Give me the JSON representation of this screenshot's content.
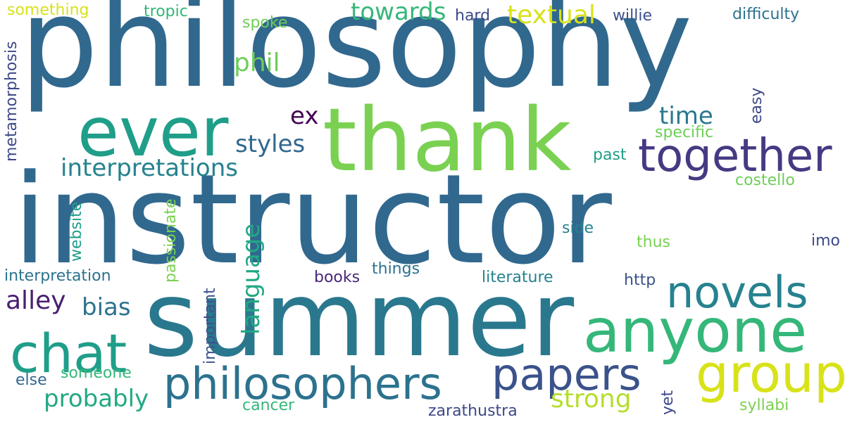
{
  "word_cloud": {
    "background": "#ffffff",
    "words": [
      {
        "text": "philosophy",
        "color": "#31688e"
      },
      {
        "text": "instructor",
        "color": "#31688e"
      },
      {
        "text": "summer",
        "color": "#2a788e"
      },
      {
        "text": "thank",
        "color": "#7ad151"
      },
      {
        "text": "ever",
        "color": "#1f9e89"
      },
      {
        "text": "together",
        "color": "#443a83"
      },
      {
        "text": "anyone",
        "color": "#35b779"
      },
      {
        "text": "group",
        "color": "#d8e219"
      },
      {
        "text": "chat",
        "color": "#1f9e89"
      },
      {
        "text": "novels",
        "color": "#26828e"
      },
      {
        "text": "philosophers",
        "color": "#2c728e"
      },
      {
        "text": "papers",
        "color": "#3b528b"
      },
      {
        "text": "interpretations",
        "color": "#26828e"
      },
      {
        "text": "styles",
        "color": "#31688e"
      },
      {
        "text": "towards",
        "color": "#35b779"
      },
      {
        "text": "textual",
        "color": "#d8e219"
      },
      {
        "text": "time",
        "color": "#2a788e"
      },
      {
        "text": "ex",
        "color": "#440154"
      },
      {
        "text": "phil",
        "color": "#6ece58"
      },
      {
        "text": "language",
        "color": "#22a884"
      },
      {
        "text": "alley",
        "color": "#481f70"
      },
      {
        "text": "bias",
        "color": "#2c728e"
      },
      {
        "text": "probably",
        "color": "#22a884"
      },
      {
        "text": "strong",
        "color": "#b5de2b"
      },
      {
        "text": "something",
        "color": "#d8e219"
      },
      {
        "text": "tropic",
        "color": "#35b779"
      },
      {
        "text": "spoke",
        "color": "#6ece58"
      },
      {
        "text": "hard",
        "color": "#3e4989"
      },
      {
        "text": "willie",
        "color": "#3b528b"
      },
      {
        "text": "difficulty",
        "color": "#2c728e"
      },
      {
        "text": "metamorphosis",
        "color": "#3e4989"
      },
      {
        "text": "easy",
        "color": "#3e4989"
      },
      {
        "text": "specific",
        "color": "#6ece58"
      },
      {
        "text": "past",
        "color": "#1f9e89"
      },
      {
        "text": "costello",
        "color": "#6ece58"
      },
      {
        "text": "website",
        "color": "#1f9e89"
      },
      {
        "text": "passionate",
        "color": "#7ad151"
      },
      {
        "text": "side",
        "color": "#26828e"
      },
      {
        "text": "thus",
        "color": "#7ad151"
      },
      {
        "text": "imo",
        "color": "#3e4989"
      },
      {
        "text": "interpretation",
        "color": "#2c728e"
      },
      {
        "text": "books",
        "color": "#482878"
      },
      {
        "text": "things",
        "color": "#2c728e"
      },
      {
        "text": "literature",
        "color": "#26828e"
      },
      {
        "text": "http",
        "color": "#3b528b"
      },
      {
        "text": "important",
        "color": "#3b528b"
      },
      {
        "text": "someone",
        "color": "#35b779"
      },
      {
        "text": "else",
        "color": "#31688e"
      },
      {
        "text": "yet",
        "color": "#3e4989"
      },
      {
        "text": "cancer",
        "color": "#35b779"
      },
      {
        "text": "zarathustra",
        "color": "#3e4989"
      },
      {
        "text": "syllabi",
        "color": "#7ad151"
      }
    ]
  }
}
